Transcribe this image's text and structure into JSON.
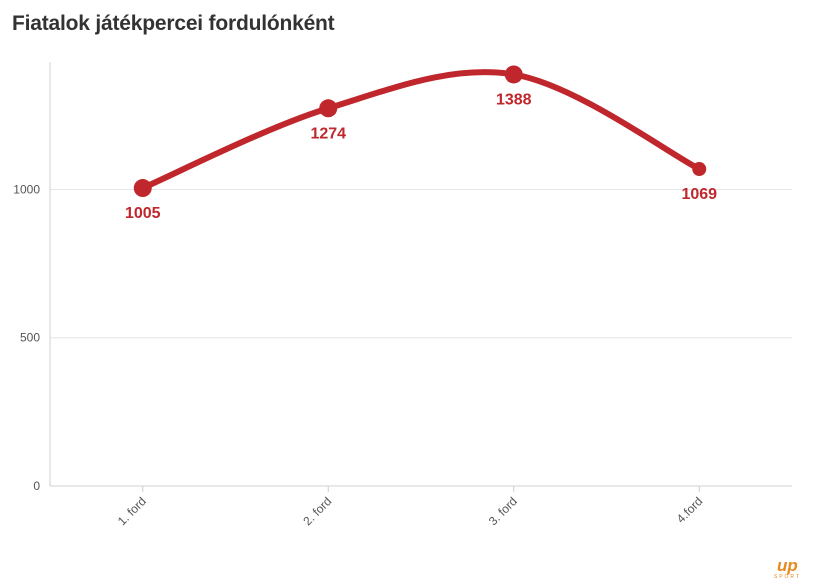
{
  "chart_data": {
    "type": "line",
    "title": "Fiatalok játékpercei fordulónként",
    "categories": [
      "1. ford",
      "2. ford",
      "3. ford",
      "4.ford"
    ],
    "series": [
      {
        "values": [
          1005,
          1274,
          1388,
          1069
        ],
        "color": "#c0272d"
      }
    ],
    "ylim": [
      0,
      1430
    ],
    "yticks": [
      0,
      500,
      1000
    ],
    "grid": true,
    "smooth": true,
    "data_labels": true
  },
  "brand": {
    "logo_mark": "up",
    "logo_sub": "SPORT",
    "accent": "#e8891f"
  }
}
